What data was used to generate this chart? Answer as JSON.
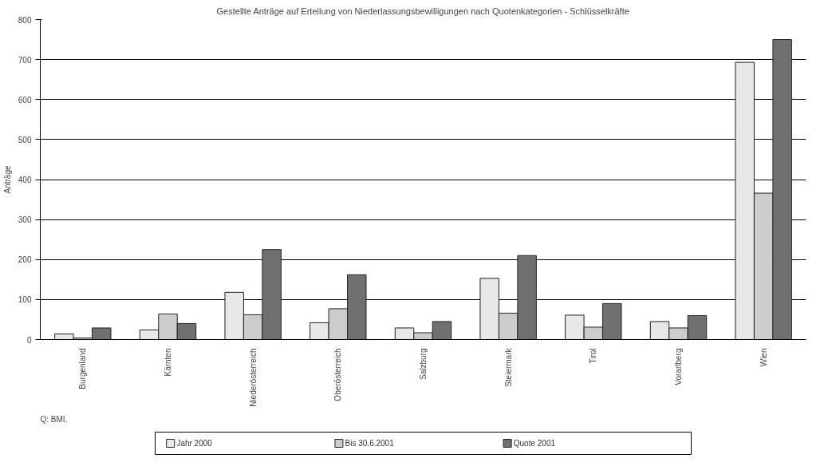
{
  "chart_data": {
    "type": "bar",
    "title": "Gestellte Anträge auf Erteilung von Niederlassungsbewilligungen nach Quotenkategorien - Schlüsselkräfte",
    "ylabel": "Anträge",
    "categories": [
      "Burgenland",
      "Kärnten",
      "Niederösterreich",
      "Oberösterreich",
      "Salzburg",
      "Steiermark",
      "Tirol",
      "Vorarlberg",
      "Wien"
    ],
    "series": [
      {
        "name": "Jahr 2000",
        "color": "#e8e8e8",
        "values": [
          14,
          24,
          118,
          42,
          29,
          153,
          61,
          45,
          693
        ]
      },
      {
        "name": "Bis 30.6.2001",
        "color": "#cccccc",
        "values": [
          4,
          64,
          62,
          77,
          17,
          66,
          31,
          29,
          366
        ]
      },
      {
        "name": "Quote 2001",
        "color": "#707070",
        "values": [
          29,
          40,
          225,
          162,
          45,
          210,
          90,
          60,
          750
        ]
      }
    ],
    "ylim": [
      0,
      800
    ],
    "yticks": [
      0,
      100,
      200,
      300,
      400,
      500,
      600,
      700,
      800
    ],
    "grid": "y",
    "legend": "bottom",
    "annotations": [
      "Q: BMI."
    ]
  }
}
